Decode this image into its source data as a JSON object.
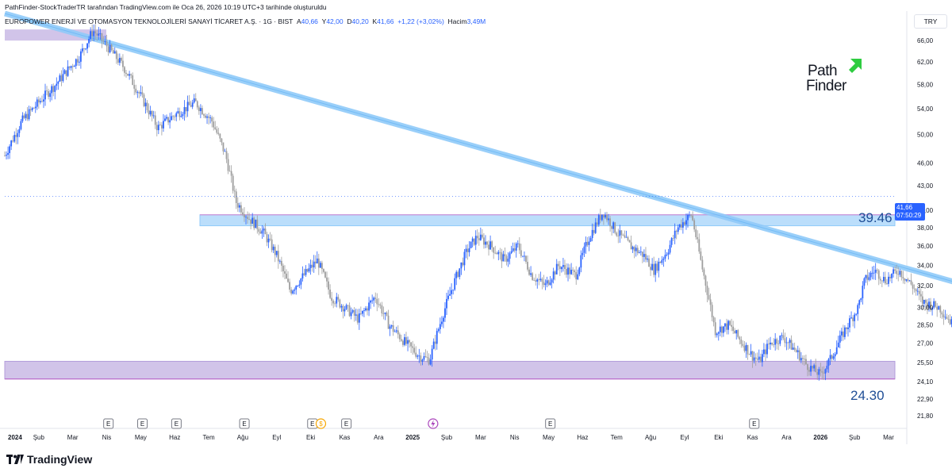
{
  "header": {
    "source_line": "PathFinder-StockTraderTR tarafından TradingView.com ile Oca 26, 2026 10:19 UTC+3 tarihinde oluşturuldu",
    "symbol": "EUROPOWER ENERJİ VE OTOMASYON TEKNOLOJİLERİ SANAYİ TİCARET A.Ş. · 1G · BIST",
    "open_label": "A",
    "open": "40,66",
    "high_label": "Y",
    "high": "42,00",
    "low_label": "D",
    "low": "40,20",
    "close_label": "K",
    "close": "41,66",
    "change": "+1,22 (+3,02%)",
    "volume_label": "Hacim",
    "volume": "3,49M",
    "currency": "TRY"
  },
  "price_tag": {
    "price": "41,66",
    "countdown": "07:50:29"
  },
  "levels": {
    "resistance_label": "39.46",
    "support_label": "24.30"
  },
  "logos": {
    "brand_top": "Path",
    "brand_bottom": "Finder",
    "tradingview": "TradingView"
  },
  "chart_data": {
    "type": "candlestick",
    "title": "EUROPOWER ENERJİ VE OTOMASYON TEKNOLOJİLERİ SANAYİ TİCARET A.Ş. · 1G · BIST",
    "y_scale": "log",
    "ylim": [
      21.0,
      72.0
    ],
    "y_ticks": [
      "70,00",
      "66,00",
      "62,00",
      "58,00",
      "54,00",
      "50,00",
      "46,00",
      "43,00",
      "40,00",
      "38,00",
      "36,00",
      "34,00",
      "32,00",
      "30,00",
      "28,50",
      "27,00",
      "25,50",
      "24,10",
      "22,90",
      "21,80"
    ],
    "x_ticks": [
      "2024",
      "Şub",
      "Mar",
      "Nis",
      "May",
      "Haz",
      "Tem",
      "Ağu",
      "Eyl",
      "Eki",
      "Kas",
      "Ara",
      "2025",
      "Şub",
      "Mar",
      "Nis",
      "May",
      "Haz",
      "Tem",
      "Ağu",
      "Eyl",
      "Eki",
      "Kas",
      "Ara",
      "2026",
      "Şub",
      "Mar"
    ],
    "x_tick_bold": [
      "2024",
      "2025",
      "2026"
    ],
    "close_path": [
      [
        0,
        47.0
      ],
      [
        0.5,
        52
      ],
      [
        1.5,
        58
      ],
      [
        2.2,
        63
      ],
      [
        2.6,
        68
      ],
      [
        3.0,
        65
      ],
      [
        3.5,
        61
      ],
      [
        4.0,
        56
      ],
      [
        4.5,
        51
      ],
      [
        5.0,
        53
      ],
      [
        5.6,
        55
      ],
      [
        6.1,
        52
      ],
      [
        6.5,
        47
      ],
      [
        6.8,
        41
      ],
      [
        7.2,
        39
      ],
      [
        7.6,
        37.5
      ],
      [
        8.0,
        35
      ],
      [
        8.4,
        31.5
      ],
      [
        8.8,
        33
      ],
      [
        9.2,
        34.5
      ],
      [
        9.6,
        31
      ],
      [
        10.0,
        30
      ],
      [
        10.4,
        29
      ],
      [
        10.9,
        31
      ],
      [
        11.3,
        28.5
      ],
      [
        11.8,
        27
      ],
      [
        12.2,
        26
      ],
      [
        12.5,
        25.7
      ],
      [
        12.9,
        29.5
      ],
      [
        13.3,
        33
      ],
      [
        13.6,
        35.5
      ],
      [
        13.9,
        37
      ],
      [
        14.3,
        36
      ],
      [
        14.7,
        34.5
      ],
      [
        15.1,
        36
      ],
      [
        15.5,
        33
      ],
      [
        15.9,
        32
      ],
      [
        16.3,
        34
      ],
      [
        16.8,
        33
      ],
      [
        17.2,
        37
      ],
      [
        17.6,
        39.8
      ],
      [
        18.0,
        37.5
      ],
      [
        18.4,
        36
      ],
      [
        18.8,
        35
      ],
      [
        19.1,
        33.5
      ],
      [
        19.5,
        35.5
      ],
      [
        19.8,
        38
      ],
      [
        20.2,
        39.5
      ],
      [
        20.5,
        34
      ],
      [
        20.9,
        28
      ],
      [
        21.3,
        28.5
      ],
      [
        21.7,
        27
      ],
      [
        22.0,
        26
      ],
      [
        22.2,
        25.6
      ],
      [
        22.5,
        27
      ],
      [
        22.9,
        27.5
      ],
      [
        23.3,
        26.3
      ],
      [
        23.6,
        25.3
      ],
      [
        24.0,
        24.6
      ],
      [
        24.3,
        25.8
      ],
      [
        24.7,
        28
      ],
      [
        25.1,
        30
      ],
      [
        25.3,
        32.5
      ],
      [
        25.6,
        33.5
      ],
      [
        25.9,
        32.5
      ],
      [
        26.3,
        33.5
      ],
      [
        26.7,
        32
      ],
      [
        27.0,
        30.5
      ],
      [
        27.5,
        30
      ],
      [
        27.9,
        28.5
      ],
      [
        28.2,
        27
      ],
      [
        28.6,
        29
      ],
      [
        29.0,
        30.5
      ],
      [
        29.4,
        28
      ],
      [
        29.7,
        27
      ],
      [
        30.1,
        26
      ],
      [
        30.4,
        27.5
      ],
      [
        30.8,
        29.5
      ],
      [
        31.1,
        30
      ],
      [
        31.5,
        28.5
      ],
      [
        31.9,
        30.5
      ],
      [
        32.3,
        31
      ],
      [
        32.8,
        32.5
      ],
      [
        33.2,
        31.5
      ],
      [
        33.6,
        33
      ],
      [
        34.0,
        34.5
      ],
      [
        34.4,
        36.5
      ],
      [
        34.8,
        39.5
      ],
      [
        35.1,
        42.5
      ],
      [
        35.4,
        41.66
      ]
    ],
    "resistance_zone": [
      38.2,
      39.46
    ],
    "support_zone": [
      24.3,
      25.6
    ],
    "top_zone": [
      66.0,
      68.2
    ],
    "trendline": {
      "from": [
        0,
        71.5
      ],
      "to": [
        33.8,
        27.4
      ]
    },
    "last_price": 41.66,
    "earnings_markers": [
      "May",
      "Haz",
      "Eki",
      "Kas",
      "Nis",
      "May",
      "Ağu",
      "Kas"
    ],
    "dividend_marker": "Eki",
    "split_marker": "Şub"
  }
}
